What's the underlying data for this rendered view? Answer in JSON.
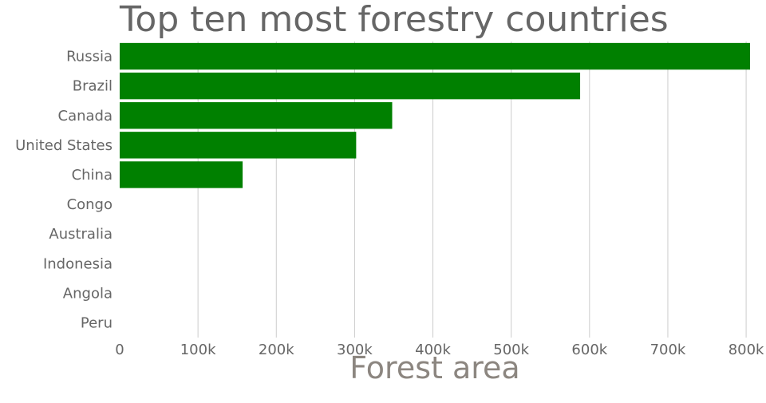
{
  "chart_data": {
    "type": "bar",
    "orientation": "horizontal",
    "title": "Top ten most forestry countries",
    "xlabel": "Forest area",
    "ylabel": "",
    "categories": [
      "Russia",
      "Brazil",
      "Canada",
      "United States",
      "China",
      "Congo",
      "Australia",
      "Indonesia",
      "Angola",
      "Peru"
    ],
    "values": [
      809000,
      588000,
      348000,
      302000,
      157000,
      0,
      0,
      0,
      0,
      0
    ],
    "xlim": [
      0,
      805000
    ],
    "x_ticks": [
      0,
      100000,
      200000,
      300000,
      400000,
      500000,
      600000,
      700000,
      800000
    ],
    "x_tick_labels": [
      "0",
      "100k",
      "200k",
      "300k",
      "400k",
      "500k",
      "600k",
      "700k",
      "800k"
    ],
    "grid": true,
    "legend": "none",
    "bar_color": "#008000"
  }
}
